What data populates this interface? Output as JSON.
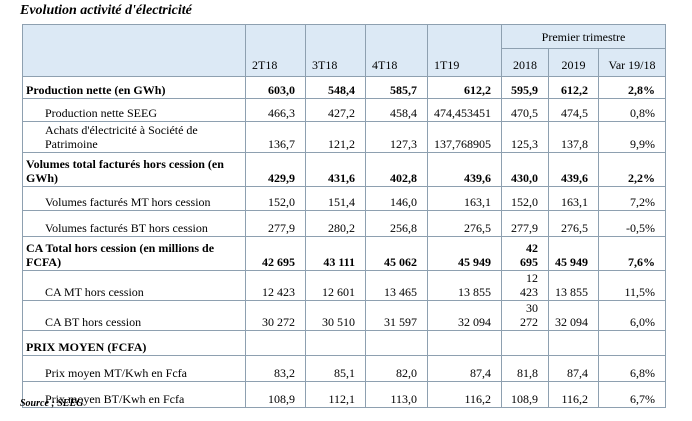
{
  "title": "Evolution activité d'électricité",
  "table": {
    "group_header": "Premier trimestre",
    "columns": [
      "2T18",
      "3T18",
      "4T18",
      "1T19",
      "2018",
      "2019",
      "Var 19/18"
    ],
    "rows": [
      {
        "label": "Production nette (en GWh)",
        "bold": true,
        "values": [
          "603,0",
          "548,4",
          "585,7",
          "612,2",
          "595,9",
          "612,2",
          "2,8%"
        ]
      },
      {
        "label": "Production nette SEEG",
        "values": [
          "466,3",
          "427,2",
          "458,4",
          "474,453451",
          "470,5",
          "474,5",
          "0,8%"
        ]
      },
      {
        "label": "Achats d'électricité à Société de Patrimoine",
        "values": [
          "136,7",
          "121,2",
          "127,3",
          "137,768905",
          "125,3",
          "137,8",
          "9,9%"
        ]
      },
      {
        "label": "Volumes total facturés hors cession (en GWh)",
        "bold": true,
        "values": [
          "429,9",
          "431,6",
          "402,8",
          "439,6",
          "430,0",
          "439,6",
          "2,2%"
        ]
      },
      {
        "label": "Volumes facturés MT hors cession",
        "values": [
          "152,0",
          "151,4",
          "146,0",
          "163,1",
          "152,0",
          "163,1",
          "7,2%"
        ]
      },
      {
        "label": "Volumes facturés  BT hors cession",
        "values": [
          "277,9",
          "280,2",
          "256,8",
          "276,5",
          "277,9",
          "276,5",
          "-0,5%"
        ]
      },
      {
        "label": "CA Total hors cession (en millions de FCFA)",
        "bold": true,
        "values": [
          "42 695",
          "43 111",
          "45 062",
          "45 949",
          "42 695",
          "45 949",
          "7,6%"
        ]
      },
      {
        "label": "CA  MT hors cession",
        "values": [
          "12 423",
          "12 601",
          "13 465",
          "13 855",
          "12 423",
          "13 855",
          "11,5%"
        ]
      },
      {
        "label": "CA  BT hors cession",
        "values": [
          "30 272",
          "30 510",
          "31 597",
          "32 094",
          "30 272",
          "32 094",
          "6,0%"
        ]
      },
      {
        "label": "PRIX MOYEN (FCFA)",
        "bold": true
      },
      {
        "label": "Prix moyen MT/Kwh en Fcfa",
        "values": [
          "83,2",
          "85,1",
          "82,0",
          "87,4",
          "81,8",
          "87,4",
          "6,8%"
        ]
      },
      {
        "label": "Prix moyen BT/Kwh en Fcfa",
        "values": [
          "108,9",
          "112,1",
          "113,0",
          "116,2",
          "108,9",
          "116,2",
          "6,7%"
        ]
      }
    ]
  },
  "source": "Source ; SEEG"
}
